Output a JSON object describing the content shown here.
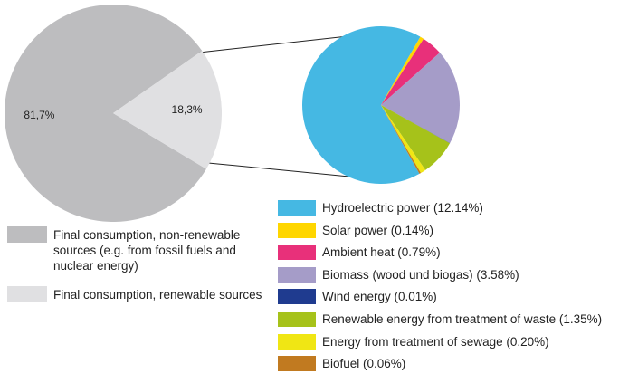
{
  "chart_data": [
    {
      "type": "pie",
      "categories": [
        "Final consumption, non-renewable sources (e.g. from fossil fuels and nuclear energy)",
        "Final consumption, renewable sources"
      ],
      "values": [
        81.7,
        18.3
      ],
      "value_labels": [
        "81,7%",
        "18,3%"
      ],
      "colors": [
        "#bdbdbf",
        "#e0e0e2"
      ]
    },
    {
      "type": "pie",
      "categories": [
        "Hydroelectric power (12.14%)",
        "Solar power  (0.14%)",
        "Ambient heat (0.79%)",
        "Biomass (wood und biogas) (3.58%)",
        "Wind energy (0.01%)",
        "Renewable energy from treatment of waste (1.35%)",
        "Energy from treatment of sewage (0.20%)",
        "Biofuel (0.06%)"
      ],
      "values": [
        12.14,
        0.14,
        0.79,
        3.58,
        0.01,
        1.35,
        0.2,
        0.06
      ],
      "colors": [
        "#45b8e3",
        "#ffd600",
        "#e8307a",
        "#a59cc8",
        "#1f3b8f",
        "#a6c21a",
        "#f0e614",
        "#c17a20"
      ]
    }
  ]
}
